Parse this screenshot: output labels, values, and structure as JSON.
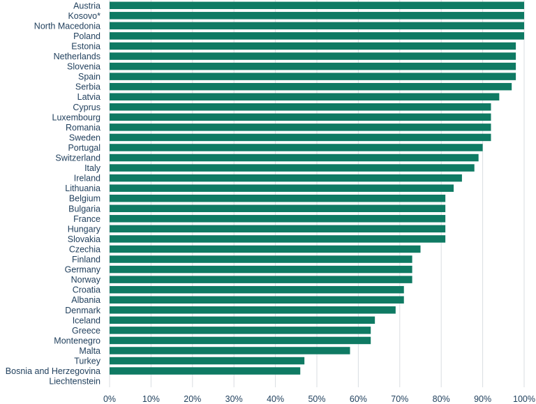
{
  "chart_data": {
    "type": "bar",
    "orientation": "horizontal",
    "bar_color": "#0f7a63",
    "grid": true,
    "xlim": [
      0,
      100
    ],
    "x_ticks": [
      "0%",
      "10%",
      "20%",
      "30%",
      "40%",
      "50%",
      "60%",
      "70%",
      "80%",
      "90%",
      "100%"
    ],
    "categories": [
      "Austria",
      "Kosovo*",
      "North Macedonia",
      "Poland",
      "Estonia",
      "Netherlands",
      "Slovenia",
      "Spain",
      "Serbia",
      "Latvia",
      "Cyprus",
      "Luxembourg",
      "Romania",
      "Sweden",
      "Portugal",
      "Switzerland",
      "Italy",
      "Ireland",
      "Lithuania",
      "Belgium",
      "Bulgaria",
      "France",
      "Hungary",
      "Slovakia",
      "Czechia",
      "Finland",
      "Germany",
      "Norway",
      "Croatia",
      "Albania",
      "Denmark",
      "Iceland",
      "Greece",
      "Montenegro",
      "Malta",
      "Turkey",
      "Bosnia and Herzegovina",
      "Liechtenstein"
    ],
    "values": [
      100,
      100,
      100,
      100,
      98,
      98,
      98,
      98,
      97,
      94,
      92,
      92,
      92,
      92,
      90,
      89,
      88,
      85,
      83,
      81,
      81,
      81,
      81,
      81,
      75,
      73,
      73,
      73,
      71,
      71,
      69,
      64,
      63,
      63,
      58,
      47,
      46,
      0
    ]
  }
}
